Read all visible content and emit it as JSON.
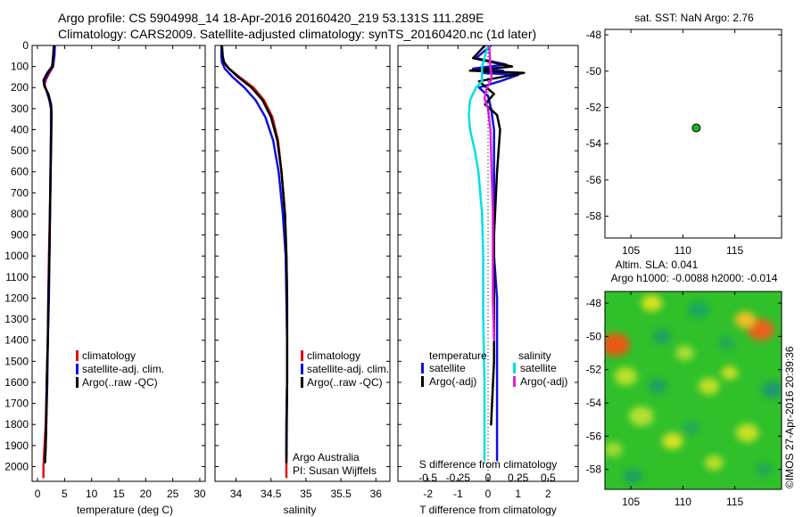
{
  "header": {
    "line1": "Argo profile: CS 5904998_14 18-Apr-2016 20160420_219 53.131S 111.289E",
    "line2": "Climatology: CARS2009. Satellite-adjusted climatology: synTS_20160420.nc (1d later)"
  },
  "credit": "©IMOS 27-Apr-2016 20:39:36",
  "colors": {
    "climatology": "#e01010",
    "satellite": "#1010e0",
    "argo": "#000000",
    "satellite_s": "#00e0e0",
    "argo_s": "#e020e0"
  },
  "chart_data": [
    {
      "id": "temperature",
      "type": "line",
      "xlabel": "temperature (deg C)",
      "ylabel": "",
      "xlim": [
        -1,
        31
      ],
      "ylim": [
        2070,
        0
      ],
      "xticks": [
        "0",
        "5",
        "10",
        "15",
        "20",
        "25",
        "30"
      ],
      "xtick_values": [
        0,
        5,
        10,
        15,
        20,
        25,
        30
      ],
      "yticks": [
        "0",
        "100",
        "200",
        "300",
        "400",
        "500",
        "600",
        "700",
        "800",
        "900",
        "1000",
        "1100",
        "1200",
        "1300",
        "1400",
        "1500",
        "1600",
        "1700",
        "1800",
        "1900",
        "2000"
      ],
      "ytick_values": [
        0,
        100,
        200,
        300,
        400,
        500,
        600,
        700,
        800,
        900,
        1000,
        1100,
        1200,
        1300,
        1400,
        1500,
        1600,
        1700,
        1800,
        1900,
        2000
      ],
      "legend": [
        "climatology",
        "satellite-adj. clim.",
        "Argo(..raw -QC)"
      ],
      "series": [
        {
          "name": "climatology",
          "color": "#e01010",
          "x": [
            3.2,
            3.1,
            2.9,
            2.2,
            1.6,
            1.3,
            1.6,
            2.2,
            2.5,
            2.5,
            2.4,
            2.3,
            2.1,
            2.0,
            1.9,
            1.7,
            1.5,
            1.3,
            1.2,
            1.1,
            1.1
          ],
          "y": [
            0,
            50,
            100,
            130,
            160,
            185,
            210,
            260,
            300,
            400,
            600,
            800,
            1000,
            1200,
            1400,
            1600,
            1800,
            1900,
            1950,
            2000,
            2050
          ]
        },
        {
          "name": "satellite-adj. clim.",
          "color": "#1010e0",
          "x": [
            3.2,
            3.1,
            2.8,
            2.0,
            1.4,
            1.2,
            1.6,
            2.2,
            2.5,
            2.5,
            2.4,
            2.3,
            2.2,
            2.1,
            1.9,
            1.8,
            1.6,
            1.5,
            1.4
          ],
          "y": [
            0,
            50,
            100,
            130,
            160,
            185,
            210,
            260,
            300,
            400,
            600,
            800,
            1000,
            1200,
            1400,
            1600,
            1800,
            1900,
            1960
          ]
        },
        {
          "name": "Argo(..raw -QC)",
          "color": "#000000",
          "x": [
            3.0,
            2.9,
            2.7,
            1.8,
            1.1,
            1.3,
            2.0,
            2.5,
            2.6,
            2.5,
            2.3,
            2.2,
            2.0,
            1.9,
            1.7,
            1.6,
            1.5,
            1.4
          ],
          "y": [
            0,
            50,
            100,
            130,
            165,
            195,
            230,
            280,
            320,
            500,
            800,
            1000,
            1200,
            1400,
            1600,
            1800,
            1900,
            1980
          ]
        }
      ]
    },
    {
      "id": "salinity",
      "type": "line",
      "xlabel": "salinity",
      "ylabel": "",
      "xlim": [
        33.7,
        36.2
      ],
      "ylim": [
        2070,
        0
      ],
      "xticks": [
        "34",
        "34.5",
        "35",
        "35.5",
        "36"
      ],
      "xtick_values": [
        34,
        34.5,
        35,
        35.5,
        36
      ],
      "legend": [
        "climatology",
        "satellite-adj. clim.",
        "Argo(..raw -QC)"
      ],
      "annotation": [
        "Argo Australia",
        "PI: Susan Wijffels"
      ],
      "series": [
        {
          "name": "climatology",
          "color": "#e01010",
          "x": [
            33.79,
            33.8,
            33.82,
            33.9,
            34.05,
            34.25,
            34.4,
            34.52,
            34.6,
            34.65,
            34.7,
            34.72,
            34.73,
            34.73,
            34.73,
            34.72,
            34.72,
            34.72
          ],
          "y": [
            0,
            50,
            80,
            110,
            150,
            200,
            260,
            340,
            450,
            600,
            800,
            1000,
            1200,
            1400,
            1600,
            1800,
            1950,
            2050
          ]
        },
        {
          "name": "satellite-adj. clim.",
          "color": "#1010e0",
          "x": [
            33.79,
            33.79,
            33.8,
            33.84,
            33.95,
            34.12,
            34.28,
            34.42,
            34.53,
            34.61,
            34.67,
            34.71,
            34.72,
            34.73,
            34.73,
            34.72,
            34.72
          ],
          "y": [
            0,
            50,
            80,
            110,
            150,
            200,
            260,
            340,
            450,
            600,
            800,
            1000,
            1200,
            1400,
            1600,
            1800,
            1960
          ]
        },
        {
          "name": "Argo(..raw -QC)",
          "color": "#000000",
          "x": [
            33.8,
            33.81,
            33.83,
            33.9,
            34.03,
            34.22,
            34.38,
            34.5,
            34.59,
            34.65,
            34.7,
            34.72,
            34.73,
            34.73,
            34.73,
            34.72
          ],
          "y": [
            0,
            50,
            80,
            110,
            150,
            200,
            260,
            340,
            450,
            600,
            800,
            1000,
            1200,
            1400,
            1600,
            1980
          ]
        }
      ]
    },
    {
      "id": "difference",
      "type": "line",
      "xlabel": "T difference from climatology",
      "ylabel": "",
      "xlim": [
        -3,
        3
      ],
      "ylim": [
        2070,
        0
      ],
      "xticks": [
        "-2",
        "-1",
        "0",
        "1",
        "2"
      ],
      "xtick_values": [
        -2,
        -1,
        0,
        1,
        2
      ],
      "secondary_xlabel": "S difference from climatology",
      "secondary_xticks": [
        "-0.5",
        "-0.25",
        "0",
        "0.25",
        "0.5"
      ],
      "secondary_xtick_values": [
        -0.5,
        -0.25,
        0,
        0.25,
        0.5
      ],
      "legend_left_title": "temperature",
      "legend_right_title": "salinity",
      "legend_left": [
        "satellite",
        "Argo(-adj)"
      ],
      "legend_right": [
        "satellite",
        "Argo(-adj)"
      ],
      "series": [
        {
          "name": "temperature satellite",
          "color": "#1010e0",
          "x": [
            0.1,
            -0.4,
            0.6,
            -0.5,
            0.5,
            -0.2,
            1.0,
            0.4,
            -0.3,
            0.0,
            0.1,
            0.2,
            0.2,
            0.2,
            0.2,
            0.3,
            0.3,
            0.3,
            0.3
          ],
          "y": [
            0,
            60,
            90,
            110,
            120,
            130,
            140,
            170,
            200,
            240,
            300,
            400,
            600,
            800,
            1000,
            1200,
            1500,
            1800,
            1970
          ]
        },
        {
          "name": "temperature Argo(-adj)",
          "color": "#000000",
          "x": [
            -0.1,
            -0.5,
            0.8,
            -0.6,
            1.2,
            -0.3,
            0.2,
            -0.1,
            0.3,
            0.4,
            0.3,
            0.2,
            0.2,
            0.2,
            0.1
          ],
          "y": [
            0,
            60,
            100,
            120,
            130,
            170,
            230,
            280,
            330,
            400,
            600,
            900,
            1200,
            1500,
            1800
          ]
        },
        {
          "name": "salinity satellite",
          "color": "#00e0e0",
          "x": [
            0.0,
            -0.05,
            -0.05,
            -0.1,
            -0.15,
            -0.16,
            -0.15,
            -0.11,
            -0.08,
            -0.05,
            -0.04,
            -0.04,
            -0.03,
            -0.03
          ],
          "y": [
            0,
            100,
            170,
            200,
            260,
            330,
            400,
            500,
            600,
            800,
            1000,
            1300,
            1600,
            1970
          ]
        },
        {
          "name": "salinity Argo(-adj)",
          "color": "#e020e0",
          "x": [
            0.01,
            0.02,
            0.03,
            -0.01,
            -0.03,
            0.0,
            0.02,
            0.03,
            0.04,
            0.04,
            0.04,
            0.05
          ],
          "y": [
            0,
            100,
            160,
            200,
            250,
            300,
            400,
            600,
            800,
            1000,
            1200,
            1400
          ]
        }
      ]
    },
    {
      "id": "sst-map",
      "type": "scatter",
      "title": "sat. SST: NaN Argo: 2.76",
      "xlim": [
        102.5,
        119.5
      ],
      "ylim": [
        -59.2,
        -47.7
      ],
      "xticks": [
        "105",
        "110",
        "115"
      ],
      "xtick_values": [
        105,
        110,
        115
      ],
      "yticks": [
        "-48",
        "-50",
        "-52",
        "-54",
        "-56",
        "-58"
      ],
      "ytick_values": [
        -48,
        -50,
        -52,
        -54,
        -56,
        -58
      ],
      "points": [
        {
          "x": 111.289,
          "y": -53.131,
          "color": "#20b020"
        }
      ]
    },
    {
      "id": "sla-map",
      "type": "heatmap",
      "title_line1": "Altim. SLA: 0.041",
      "title_line2": "Argo h1000: -0.0088 h2000: -0.014",
      "xlim": [
        102.5,
        119.5
      ],
      "ylim": [
        -59.2,
        -47.3
      ],
      "xticks": [
        "105",
        "110",
        "115"
      ],
      "xtick_values": [
        105,
        110,
        115
      ],
      "yticks": [
        "-48",
        "-50",
        "-52",
        "-54",
        "-56",
        "-58"
      ],
      "ytick_values": [
        -48,
        -50,
        -52,
        -54,
        -56,
        -58
      ],
      "base_color": "#2fc02a",
      "blobs": [
        {
          "x": 103.5,
          "y": -50.5,
          "r": 1.4,
          "color": "#e85a18"
        },
        {
          "x": 117.5,
          "y": -49.6,
          "r": 1.3,
          "color": "#e8601a"
        },
        {
          "x": 116.0,
          "y": -49.0,
          "r": 1.0,
          "color": "#f0c020"
        },
        {
          "x": 107.0,
          "y": -48.0,
          "r": 1.0,
          "color": "#d8e020"
        },
        {
          "x": 104.5,
          "y": -52.4,
          "r": 1.1,
          "color": "#b8e028"
        },
        {
          "x": 110.2,
          "y": -51.0,
          "r": 0.9,
          "color": "#a8e030"
        },
        {
          "x": 112.5,
          "y": -53.0,
          "r": 1.0,
          "color": "#c0e028"
        },
        {
          "x": 114.5,
          "y": -52.2,
          "r": 0.8,
          "color": "#d0e020"
        },
        {
          "x": 106.0,
          "y": -54.8,
          "r": 1.2,
          "color": "#b0e030"
        },
        {
          "x": 109.0,
          "y": -56.3,
          "r": 1.0,
          "color": "#d8e020"
        },
        {
          "x": 116.2,
          "y": -55.8,
          "r": 1.1,
          "color": "#c8e028"
        },
        {
          "x": 103.3,
          "y": -56.8,
          "r": 0.9,
          "color": "#a0dc30"
        },
        {
          "x": 113.0,
          "y": -57.6,
          "r": 0.9,
          "color": "#b8e028"
        },
        {
          "x": 108.0,
          "y": -50.0,
          "r": 0.9,
          "color": "#1aa060"
        },
        {
          "x": 111.5,
          "y": -48.4,
          "r": 1.0,
          "color": "#18a860"
        },
        {
          "x": 118.6,
          "y": -53.2,
          "r": 1.0,
          "color": "#1a9870"
        },
        {
          "x": 114.2,
          "y": -50.4,
          "r": 0.8,
          "color": "#20a858"
        },
        {
          "x": 107.6,
          "y": -53.0,
          "r": 0.9,
          "color": "#1aa060"
        },
        {
          "x": 110.8,
          "y": -55.5,
          "r": 0.8,
          "color": "#20a858"
        },
        {
          "x": 105.2,
          "y": -58.4,
          "r": 0.9,
          "color": "#1aa060"
        },
        {
          "x": 117.8,
          "y": -58.0,
          "r": 0.8,
          "color": "#20a858"
        }
      ]
    }
  ]
}
